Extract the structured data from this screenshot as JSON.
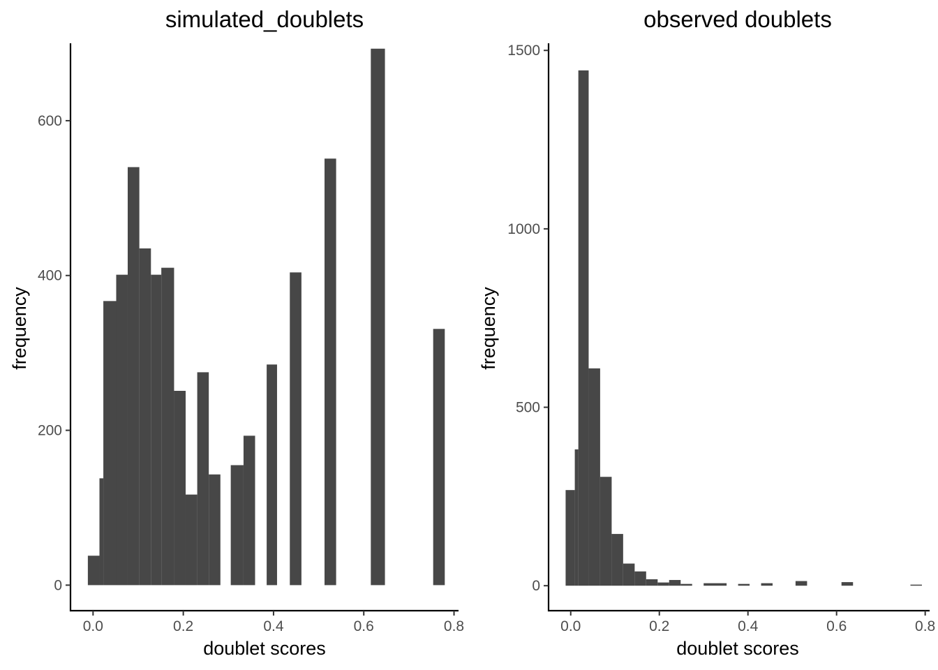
{
  "chart_data": [
    {
      "type": "bar",
      "title": "simulated_doublets",
      "xlabel": "doublet scores",
      "ylabel": "frequency",
      "xlim": [
        -0.05,
        0.81
      ],
      "ylim": [
        -33,
        700
      ],
      "xticks": [
        0.0,
        0.2,
        0.4,
        0.6,
        0.8
      ],
      "xtick_labels": [
        "0.0",
        "0.2",
        "0.4",
        "0.6",
        "0.8"
      ],
      "yticks": [
        0,
        200,
        400,
        600
      ],
      "ytick_labels": [
        "0",
        "200",
        "400",
        "600"
      ],
      "grid": false,
      "legend": "none",
      "color": "#474747",
      "bars": [
        {
          "x0": -0.0115,
          "x1": 0.0142,
          "value": 38
        },
        {
          "x0": 0.0142,
          "x1": 0.0228,
          "value": 138
        },
        {
          "x0": 0.0228,
          "x1": 0.0513,
          "value": 367
        },
        {
          "x0": 0.0513,
          "x1": 0.0768,
          "value": 401
        },
        {
          "x0": 0.0768,
          "x1": 0.1026,
          "value": 540
        },
        {
          "x0": 0.1026,
          "x1": 0.1283,
          "value": 435
        },
        {
          "x0": 0.1283,
          "x1": 0.1513,
          "value": 401
        },
        {
          "x0": 0.1513,
          "x1": 0.1796,
          "value": 410
        },
        {
          "x0": 0.1796,
          "x1": 0.2052,
          "value": 251
        },
        {
          "x0": 0.2052,
          "x1": 0.2309,
          "value": 117
        },
        {
          "x0": 0.2309,
          "x1": 0.2565,
          "value": 275
        },
        {
          "x0": 0.2565,
          "x1": 0.2822,
          "value": 143
        },
        {
          "x0": 0.3052,
          "x1": 0.3335,
          "value": 155
        },
        {
          "x0": 0.3335,
          "x1": 0.3591,
          "value": 193
        },
        {
          "x0": 0.3848,
          "x1": 0.4078,
          "value": 285
        },
        {
          "x0": 0.4361,
          "x1": 0.4618,
          "value": 404
        },
        {
          "x0": 0.513,
          "x1": 0.5387,
          "value": 551
        },
        {
          "x0": 0.6156,
          "x1": 0.6469,
          "value": 693
        },
        {
          "x0": 0.7538,
          "x1": 0.7795,
          "value": 331
        }
      ]
    },
    {
      "type": "bar",
      "title": "observed doublets",
      "xlabel": "doublet scores",
      "ylabel": "frequency",
      "xlim": [
        -0.05,
        0.81
      ],
      "ylim": [
        -70,
        1520
      ],
      "xticks": [
        0.0,
        0.2,
        0.4,
        0.6,
        0.8
      ],
      "xtick_labels": [
        "0.0",
        "0.2",
        "0.4",
        "0.6",
        "0.8"
      ],
      "yticks": [
        0,
        500,
        1000,
        1500
      ],
      "ytick_labels": [
        "0",
        "500",
        "1000",
        "1500"
      ],
      "grid": false,
      "legend": "none",
      "color": "#474747",
      "bars": [
        {
          "x0": -0.0115,
          "x1": 0.0092,
          "value": 268
        },
        {
          "x0": 0.0092,
          "x1": 0.0172,
          "value": 382
        },
        {
          "x0": 0.0172,
          "x1": 0.0405,
          "value": 1444
        },
        {
          "x0": 0.0405,
          "x1": 0.0664,
          "value": 609
        },
        {
          "x0": 0.0664,
          "x1": 0.0924,
          "value": 305
        },
        {
          "x0": 0.0924,
          "x1": 0.1183,
          "value": 145
        },
        {
          "x0": 0.1183,
          "x1": 0.1443,
          "value": 62
        },
        {
          "x0": 0.1443,
          "x1": 0.1702,
          "value": 40
        },
        {
          "x0": 0.1702,
          "x1": 0.1962,
          "value": 18
        },
        {
          "x0": 0.1962,
          "x1": 0.2221,
          "value": 9
        },
        {
          "x0": 0.2221,
          "x1": 0.2481,
          "value": 16
        },
        {
          "x0": 0.2481,
          "x1": 0.274,
          "value": 5
        },
        {
          "x0": 0.3,
          "x1": 0.3518,
          "value": 7
        },
        {
          "x0": 0.3778,
          "x1": 0.4037,
          "value": 5
        },
        {
          "x0": 0.4297,
          "x1": 0.4556,
          "value": 7
        },
        {
          "x0": 0.5074,
          "x1": 0.5334,
          "value": 13
        },
        {
          "x0": 0.6111,
          "x1": 0.6371,
          "value": 10
        },
        {
          "x0": 0.7667,
          "x1": 0.7926,
          "value": 3
        }
      ]
    }
  ]
}
